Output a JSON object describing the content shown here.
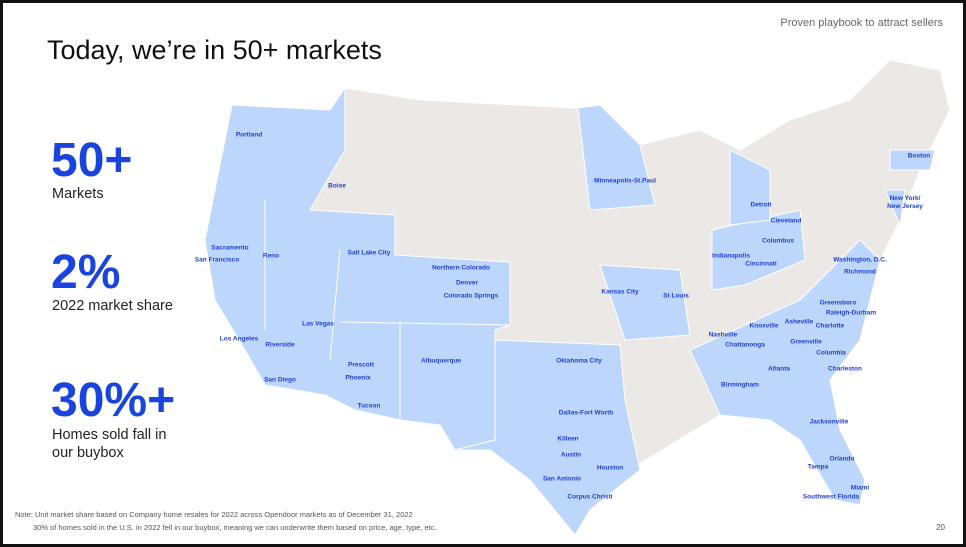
{
  "header": {
    "title": "Today, we’re in 50+ markets",
    "tagline": "Proven playbook to attract sellers"
  },
  "stats": [
    {
      "value": "50+",
      "label": "Markets"
    },
    {
      "value": "2%",
      "label": "2022 market share"
    },
    {
      "value": "30%+",
      "label": "Homes sold fall in our buybox"
    }
  ],
  "map": {
    "cities": [
      "Portland",
      "Boise",
      "Sacramento",
      "San Francisco",
      "Reno",
      "Salt Lake City",
      "Northern Colorado",
      "Denver",
      "Colorado Springs",
      "Minneapolis-St.Paul",
      "Detroit",
      "Cleveland",
      "Columbus",
      "Indianapolis",
      "Cincinnati",
      "Boston",
      "New York/ New Jersey",
      "Washington, D.C.",
      "Richmond",
      "Kansas City",
      "St Louis",
      "Las Vegas",
      "Los Angeles",
      "Riverside",
      "San Diego",
      "Prescott",
      "Phoenix",
      "Tucson",
      "Albuquerque",
      "Oklahoma City",
      "Nashville",
      "Knoxville",
      "Asheville",
      "Greensboro",
      "Raleigh-Durham",
      "Charlotte",
      "Chattanooga",
      "Greenville",
      "Columbia",
      "Atlanta",
      "Charleston",
      "Birmingham",
      "Dallas-Fort Worth",
      "Killeen",
      "Austin",
      "Houston",
      "San Antonio",
      "Corpus Christi",
      "Jacksonville",
      "Orlando",
      "Tampa",
      "Miami",
      "Southwest Florida"
    ]
  },
  "footer": {
    "notes": [
      "Note: Unit market share based on Company home resales for 2022 across Opendoor markets as of December 31, 2022",
      "30% of homes sold in the U.S. in 2022 fell in our buybox, meaning we can underwrite them based on price, age, type, etc."
    ],
    "page": "20"
  }
}
